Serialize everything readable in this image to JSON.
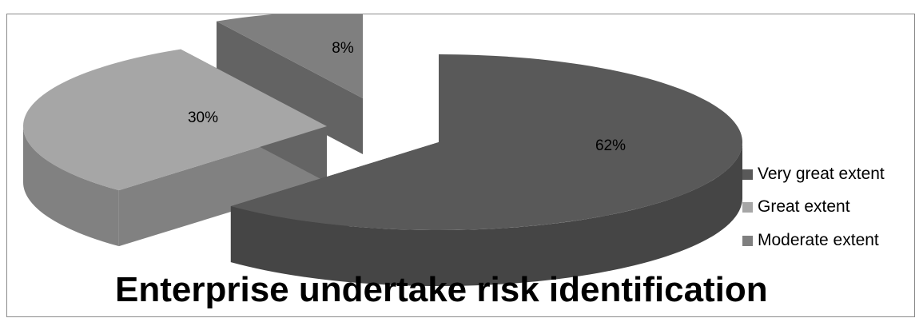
{
  "chart_data": {
    "type": "pie",
    "title": "Enterprise undertake risk identification",
    "slices": [
      {
        "label": "Very great extent",
        "value": 62,
        "value_label": "62%",
        "color": "#595959"
      },
      {
        "label": "Great extent",
        "value": 30,
        "value_label": "30%",
        "color": "#a6a6a6"
      },
      {
        "label": "Moderate extent",
        "value": 8,
        "value_label": "8%",
        "color": "#7f7f7f"
      }
    ],
    "legend_position": "right",
    "style": "3d-exploded"
  }
}
